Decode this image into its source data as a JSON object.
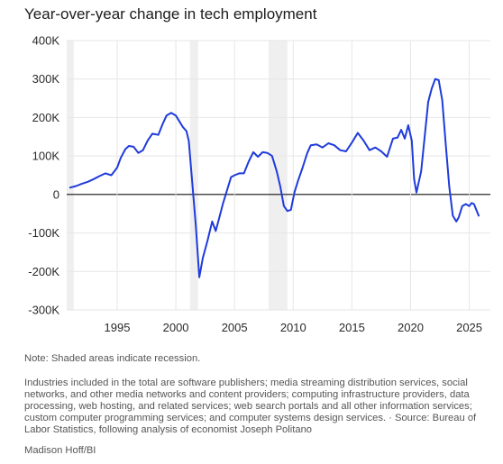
{
  "chart_data": {
    "type": "line",
    "title": "Year-over-year change in tech employment",
    "xlabel": "",
    "ylabel": "",
    "xlim": [
      1990.7,
      2026.8
    ],
    "ylim": [
      -300000,
      400000
    ],
    "y_ticks": [
      {
        "value": 400000,
        "label": "400K"
      },
      {
        "value": 300000,
        "label": "300K"
      },
      {
        "value": 200000,
        "label": "200K"
      },
      {
        "value": 100000,
        "label": "100K"
      },
      {
        "value": 0,
        "label": "0"
      },
      {
        "value": -100000,
        "label": "-100K"
      },
      {
        "value": -200000,
        "label": "-200K"
      },
      {
        "value": -300000,
        "label": "-300K"
      }
    ],
    "x_ticks": [
      {
        "value": 1995,
        "label": "1995"
      },
      {
        "value": 2000,
        "label": "2000"
      },
      {
        "value": 2005,
        "label": "2005"
      },
      {
        "value": 2010,
        "label": "2010"
      },
      {
        "value": 2015,
        "label": "2015"
      },
      {
        "value": 2020,
        "label": "2020"
      },
      {
        "value": 2025,
        "label": "2025"
      }
    ],
    "recessions": [
      {
        "start": 1990.7,
        "end": 1991.3
      },
      {
        "start": 2001.2,
        "end": 2001.9
      },
      {
        "start": 2007.9,
        "end": 2009.5
      }
    ],
    "grid": true,
    "line_color": "#1f3bdb",
    "series": [
      {
        "points": [
          [
            1991.0,
            18000
          ],
          [
            1991.5,
            22000
          ],
          [
            1992.0,
            28000
          ],
          [
            1992.5,
            33000
          ],
          [
            1993.0,
            40000
          ],
          [
            1993.5,
            48000
          ],
          [
            1994.0,
            55000
          ],
          [
            1994.5,
            50000
          ],
          [
            1995.0,
            70000
          ],
          [
            1995.3,
            95000
          ],
          [
            1995.7,
            118000
          ],
          [
            1996.0,
            126000
          ],
          [
            1996.4,
            124000
          ],
          [
            1996.8,
            108000
          ],
          [
            1997.2,
            115000
          ],
          [
            1997.6,
            140000
          ],
          [
            1998.0,
            158000
          ],
          [
            1998.5,
            155000
          ],
          [
            1998.9,
            185000
          ],
          [
            1999.2,
            205000
          ],
          [
            1999.6,
            212000
          ],
          [
            2000.0,
            205000
          ],
          [
            2000.3,
            190000
          ],
          [
            2000.6,
            175000
          ],
          [
            2000.9,
            165000
          ],
          [
            2001.1,
            140000
          ],
          [
            2001.4,
            30000
          ],
          [
            2001.7,
            -80000
          ],
          [
            2002.0,
            -215000
          ],
          [
            2002.3,
            -165000
          ],
          [
            2002.7,
            -120000
          ],
          [
            2003.1,
            -70000
          ],
          [
            2003.4,
            -95000
          ],
          [
            2003.7,
            -60000
          ],
          [
            2004.0,
            -25000
          ],
          [
            2004.3,
            5000
          ],
          [
            2004.7,
            45000
          ],
          [
            2005.0,
            50000
          ],
          [
            2005.4,
            55000
          ],
          [
            2005.8,
            55000
          ],
          [
            2006.2,
            85000
          ],
          [
            2006.6,
            110000
          ],
          [
            2007.0,
            98000
          ],
          [
            2007.4,
            110000
          ],
          [
            2007.8,
            108000
          ],
          [
            2008.2,
            100000
          ],
          [
            2008.6,
            60000
          ],
          [
            2008.9,
            20000
          ],
          [
            2009.2,
            -30000
          ],
          [
            2009.5,
            -43000
          ],
          [
            2009.8,
            -40000
          ],
          [
            2010.1,
            5000
          ],
          [
            2010.4,
            35000
          ],
          [
            2010.8,
            70000
          ],
          [
            2011.2,
            108000
          ],
          [
            2011.5,
            128000
          ],
          [
            2012.0,
            130000
          ],
          [
            2012.5,
            122000
          ],
          [
            2013.0,
            133000
          ],
          [
            2013.5,
            128000
          ],
          [
            2014.0,
            115000
          ],
          [
            2014.5,
            112000
          ],
          [
            2015.0,
            135000
          ],
          [
            2015.5,
            160000
          ],
          [
            2016.0,
            140000
          ],
          [
            2016.5,
            115000
          ],
          [
            2017.0,
            122000
          ],
          [
            2017.5,
            112000
          ],
          [
            2018.0,
            98000
          ],
          [
            2018.5,
            145000
          ],
          [
            2018.9,
            148000
          ],
          [
            2019.2,
            168000
          ],
          [
            2019.5,
            145000
          ],
          [
            2019.8,
            180000
          ],
          [
            2020.1,
            140000
          ],
          [
            2020.3,
            40000
          ],
          [
            2020.5,
            5000
          ],
          [
            2020.9,
            60000
          ],
          [
            2021.2,
            150000
          ],
          [
            2021.5,
            240000
          ],
          [
            2021.8,
            275000
          ],
          [
            2022.1,
            300000
          ],
          [
            2022.4,
            297000
          ],
          [
            2022.7,
            245000
          ],
          [
            2023.0,
            130000
          ],
          [
            2023.3,
            20000
          ],
          [
            2023.6,
            -55000
          ],
          [
            2023.9,
            -70000
          ],
          [
            2024.1,
            -60000
          ],
          [
            2024.4,
            -30000
          ],
          [
            2024.7,
            -25000
          ],
          [
            2025.0,
            -30000
          ],
          [
            2025.2,
            -22000
          ],
          [
            2025.4,
            -25000
          ],
          [
            2025.6,
            -40000
          ],
          [
            2025.8,
            -55000
          ]
        ]
      }
    ]
  },
  "notes": {
    "recession": "Note: Shaded areas indicate recession.",
    "industries": "Industries included in the total are software publishers; media streaming distribution services, social networks, and other media networks and content providers; computing infrastructure providers, data processing, web hosting, and related services; web search portals and all other information services; custom computer programming services; and computer systems design services. · Source: Bureau of Labor Statistics, following analysis of economist Joseph Politano",
    "credit": "Madison Hoff/BI"
  }
}
